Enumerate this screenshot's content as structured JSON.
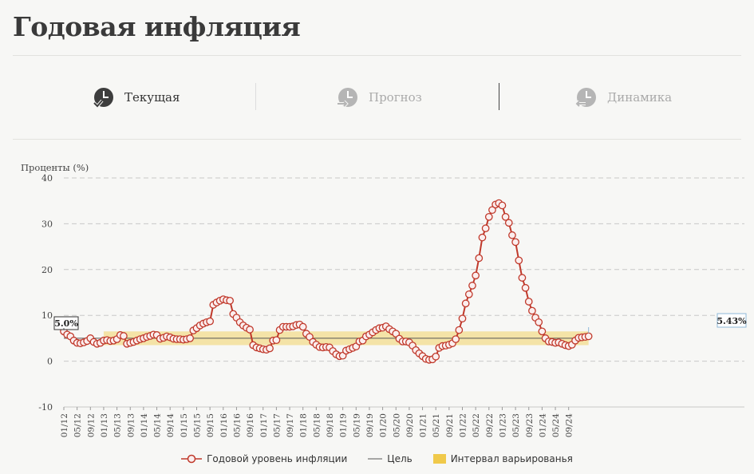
{
  "page": {
    "title": "Годовая инфляция"
  },
  "tabs": [
    {
      "label": "Текущая",
      "icon": "clock-check-icon",
      "state": "active"
    },
    {
      "label": "Прогноз",
      "icon": "clock-arrow-forward-icon",
      "state": "inactive"
    },
    {
      "label": "Динамика",
      "icon": "clock-arrow-back-icon",
      "state": "inactive"
    }
  ],
  "colors": {
    "line": "#c0392b",
    "marker_fill": "#fbeeee",
    "band": "#f0c94a",
    "target": "#555555",
    "grid": "#c8c8c8"
  },
  "chart_data": {
    "type": "line",
    "ylabel": "Проценты (%)",
    "ylim": [
      -10,
      40
    ],
    "yticks": [
      -10,
      0,
      10,
      20,
      30,
      40
    ],
    "x_start": "01/12",
    "x_labels": [
      "01/12",
      "05/12",
      "09/12",
      "01/13",
      "05/13",
      "09/13",
      "01/14",
      "05/14",
      "09/14",
      "01/15",
      "05/15",
      "09/15",
      "01/16",
      "05/16",
      "09/16",
      "01/17",
      "05/17",
      "09/17",
      "01/18",
      "05/18",
      "09/18",
      "01/19",
      "05/19",
      "09/19",
      "01/20",
      "05/20",
      "09/20",
      "01/21",
      "05/21",
      "09/21",
      "01/22",
      "05/22",
      "09/22",
      "01/23",
      "05/23",
      "09/23",
      "01/24",
      "05/24",
      "09/24"
    ],
    "target": 5.0,
    "band": [
      3.5,
      6.5
    ],
    "band_start": "01/13",
    "first_label": "5.0%",
    "last_label": "5.43%",
    "series": [
      {
        "name": "Годовой уровень инфляции",
        "values": [
          6.5,
          5.8,
          5.4,
          4.5,
          4.0,
          3.9,
          4.1,
          4.4,
          5.0,
          4.2,
          3.8,
          4.0,
          4.5,
          4.6,
          4.4,
          4.5,
          4.8,
          5.7,
          5.5,
          3.8,
          4.0,
          4.2,
          4.5,
          4.8,
          5.0,
          5.3,
          5.5,
          5.8,
          5.7,
          4.9,
          5.1,
          5.4,
          5.2,
          4.9,
          4.8,
          4.8,
          4.7,
          4.8,
          5.0,
          6.7,
          7.2,
          7.8,
          8.2,
          8.5,
          8.7,
          12.3,
          12.8,
          13.2,
          13.5,
          13.3,
          13.2,
          10.3,
          9.5,
          8.5,
          7.8,
          7.3,
          6.9,
          3.5,
          3.0,
          2.8,
          2.6,
          2.5,
          2.8,
          4.5,
          4.6,
          6.8,
          7.5,
          7.5,
          7.5,
          7.6,
          7.9,
          8.0,
          7.5,
          6.0,
          5.3,
          4.2,
          3.6,
          3.1,
          3.0,
          3.1,
          3.0,
          2.2,
          1.5,
          1.1,
          1.2,
          2.3,
          2.6,
          2.9,
          3.2,
          4.3,
          4.5,
          5.4,
          5.8,
          6.3,
          6.8,
          7.2,
          7.3,
          7.6,
          7.0,
          6.5,
          6.0,
          4.9,
          4.3,
          4.3,
          4.1,
          3.4,
          2.4,
          1.7,
          1.1,
          0.5,
          0.3,
          0.4,
          1.0,
          2.9,
          3.3,
          3.4,
          3.6,
          3.9,
          4.8,
          6.8,
          9.3,
          12.6,
          14.6,
          16.5,
          18.7,
          22.5,
          27.0,
          29.0,
          31.5,
          33.0,
          34.2,
          34.5,
          34.0,
          31.5,
          30.2,
          27.5,
          26.0,
          22.0,
          18.2,
          16.0,
          13.0,
          11.0,
          9.5,
          8.5,
          6.5,
          5.0,
          4.3,
          4.2,
          4.0,
          4.1,
          3.8,
          3.5,
          3.3,
          3.6,
          4.5,
          5.1,
          5.2,
          5.3,
          5.43
        ]
      },
      {
        "name": "Цель"
      },
      {
        "name": "Интервал варьированья"
      }
    ]
  }
}
